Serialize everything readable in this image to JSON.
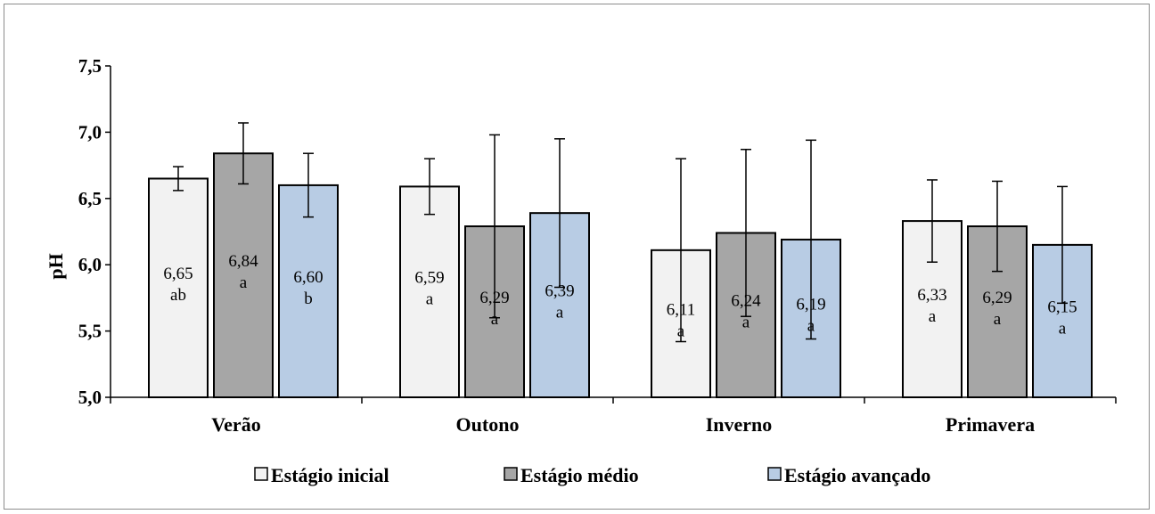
{
  "chart_data": {
    "type": "bar",
    "title": "",
    "xlabel": "",
    "ylabel": "pH",
    "ylim": [
      5.0,
      7.5
    ],
    "yticks": [
      "5,0",
      "5,5",
      "6,0",
      "6,5",
      "7,0",
      "7,5"
    ],
    "ytick_values": [
      5.0,
      5.5,
      6.0,
      6.5,
      7.0,
      7.5
    ],
    "grid": false,
    "legend_position": "bottom",
    "categories": [
      "Verão",
      "Outono",
      "Inverno",
      "Primavera"
    ],
    "series": [
      {
        "name": "Estágio inicial",
        "color": "#f2f2f2",
        "values": [
          6.65,
          6.59,
          6.11,
          6.33
        ],
        "error": [
          0.09,
          0.21,
          0.69,
          0.31
        ],
        "value_labels": [
          "6,65",
          "6,59",
          "6,11",
          "6,33"
        ],
        "letters": [
          "ab",
          "a",
          "a",
          "a"
        ]
      },
      {
        "name": "Estágio médio",
        "color": "#a6a6a6",
        "values": [
          6.84,
          6.29,
          6.24,
          6.29
        ],
        "error": [
          0.23,
          0.69,
          0.63,
          0.34
        ],
        "value_labels": [
          "6,84",
          "6,29",
          "6,24",
          "6,29"
        ],
        "letters": [
          "a",
          "a",
          "a",
          "a"
        ]
      },
      {
        "name": "Estágio avançado",
        "color": "#b8cce4",
        "values": [
          6.6,
          6.39,
          6.19,
          6.15
        ],
        "error": [
          0.24,
          0.56,
          0.75,
          0.44
        ],
        "value_labels": [
          "6,60",
          "6,39",
          "6,19",
          "6,15"
        ],
        "letters": [
          "b",
          "a",
          "a",
          "a"
        ]
      }
    ]
  }
}
